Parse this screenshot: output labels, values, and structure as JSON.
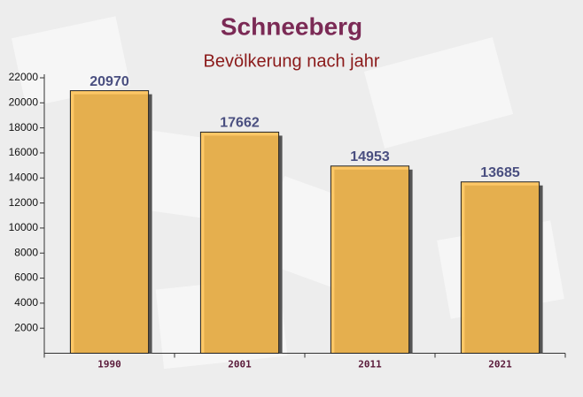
{
  "chart_data": {
    "type": "bar",
    "title": "Schneeberg",
    "subtitle": "Bevölkerung nach jahr",
    "categories": [
      "1990",
      "2001",
      "2011",
      "2021"
    ],
    "values": [
      20970,
      17662,
      14953,
      13685
    ],
    "color": "#ffc04d",
    "ylim": [
      0,
      22000
    ],
    "yticks": [
      2000,
      4000,
      6000,
      8000,
      10000,
      12000,
      14000,
      16000,
      18000,
      20000,
      22000
    ]
  }
}
